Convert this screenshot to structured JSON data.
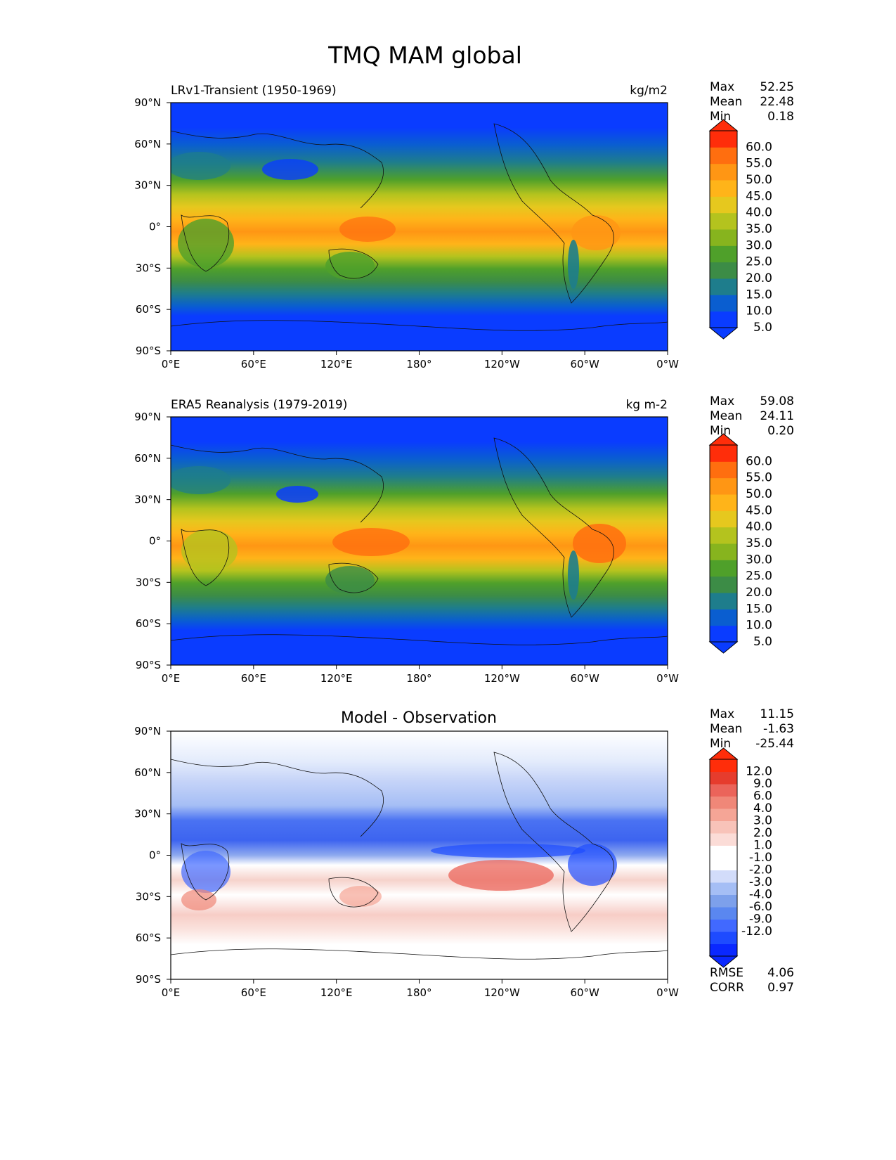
{
  "title": "TMQ MAM global",
  "colors": {
    "sequential": [
      "#0a3cff",
      "#0a5ed0",
      "#1e7d8c",
      "#3c8c46",
      "#4fa02a",
      "#87b41e",
      "#b4c31e",
      "#e6c81e",
      "#ffb419",
      "#ff9614",
      "#ff6e0f",
      "#ff2d0a"
    ],
    "diverging": [
      "#0a28ff",
      "#1e4bff",
      "#4169ff",
      "#5a87f0",
      "#7da0eb",
      "#a5bef5",
      "#d2dcfa",
      "#ffffff",
      "#ffffff",
      "#fbdcd7",
      "#f8c3b9",
      "#f5a596",
      "#f08778",
      "#eb645a",
      "#e63c2d",
      "#ff2d0a"
    ]
  },
  "chart_data": [
    {
      "type": "heatmap",
      "title": "LRv1-Transient (1950-1969)",
      "units": "kg/m2",
      "variable": "TMQ",
      "season": "MAM",
      "stats": {
        "labels": [
          "Max",
          "Mean",
          "Min"
        ],
        "values": [
          "52.25",
          "22.48",
          "0.18"
        ]
      },
      "xlim": [
        0,
        360
      ],
      "ylim": [
        -90,
        90
      ],
      "xticks": [
        "0°E",
        "60°E",
        "120°E",
        "180°",
        "120°W",
        "60°W",
        "0°W"
      ],
      "yticks": [
        "90°N",
        "60°N",
        "30°N",
        "0°",
        "30°S",
        "60°S",
        "90°S"
      ],
      "colorbar": {
        "levels": [
          "60.0",
          "55.0",
          "50.0",
          "45.0",
          "40.0",
          "35.0",
          "30.0",
          "25.0",
          "20.0",
          "15.0",
          "10.0",
          "5.0"
        ],
        "extend": "both"
      }
    },
    {
      "type": "heatmap",
      "title": "ERA5 Reanalysis (1979-2019)",
      "units": "kg m-2",
      "variable": "TMQ",
      "season": "MAM",
      "stats": {
        "labels": [
          "Max",
          "Mean",
          "Min"
        ],
        "values": [
          "59.08",
          "24.11",
          "0.20"
        ]
      },
      "xlim": [
        0,
        360
      ],
      "ylim": [
        -90,
        90
      ],
      "xticks": [
        "0°E",
        "60°E",
        "120°E",
        "180°",
        "120°W",
        "60°W",
        "0°W"
      ],
      "yticks": [
        "90°N",
        "60°N",
        "30°N",
        "0°",
        "30°S",
        "60°S",
        "90°S"
      ],
      "colorbar": {
        "levels": [
          "60.0",
          "55.0",
          "50.0",
          "45.0",
          "40.0",
          "35.0",
          "30.0",
          "25.0",
          "20.0",
          "15.0",
          "10.0",
          "5.0"
        ],
        "extend": "both"
      }
    },
    {
      "type": "heatmap",
      "title": "Model - Observation",
      "units": "",
      "variable": "TMQ difference",
      "season": "MAM",
      "stats": {
        "labels": [
          "Max",
          "Mean",
          "Min"
        ],
        "values": [
          "11.15",
          "-1.63",
          "-25.44"
        ]
      },
      "extra_stats": {
        "labels": [
          "RMSE",
          "CORR"
        ],
        "values": [
          "4.06",
          "0.97"
        ]
      },
      "xlim": [
        0,
        360
      ],
      "ylim": [
        -90,
        90
      ],
      "xticks": [
        "0°E",
        "60°E",
        "120°E",
        "180°",
        "120°W",
        "60°W",
        "0°W"
      ],
      "yticks": [
        "90°N",
        "60°N",
        "30°N",
        "0°",
        "30°S",
        "60°S",
        "90°S"
      ],
      "colorbar": {
        "levels": [
          "12.0",
          "9.0",
          "6.0",
          "4.0",
          "3.0",
          "2.0",
          "1.0",
          "-1.0",
          "-2.0",
          "-3.0",
          "-4.0",
          "-6.0",
          "-9.0",
          "-12.0"
        ],
        "extend": "both"
      }
    }
  ]
}
